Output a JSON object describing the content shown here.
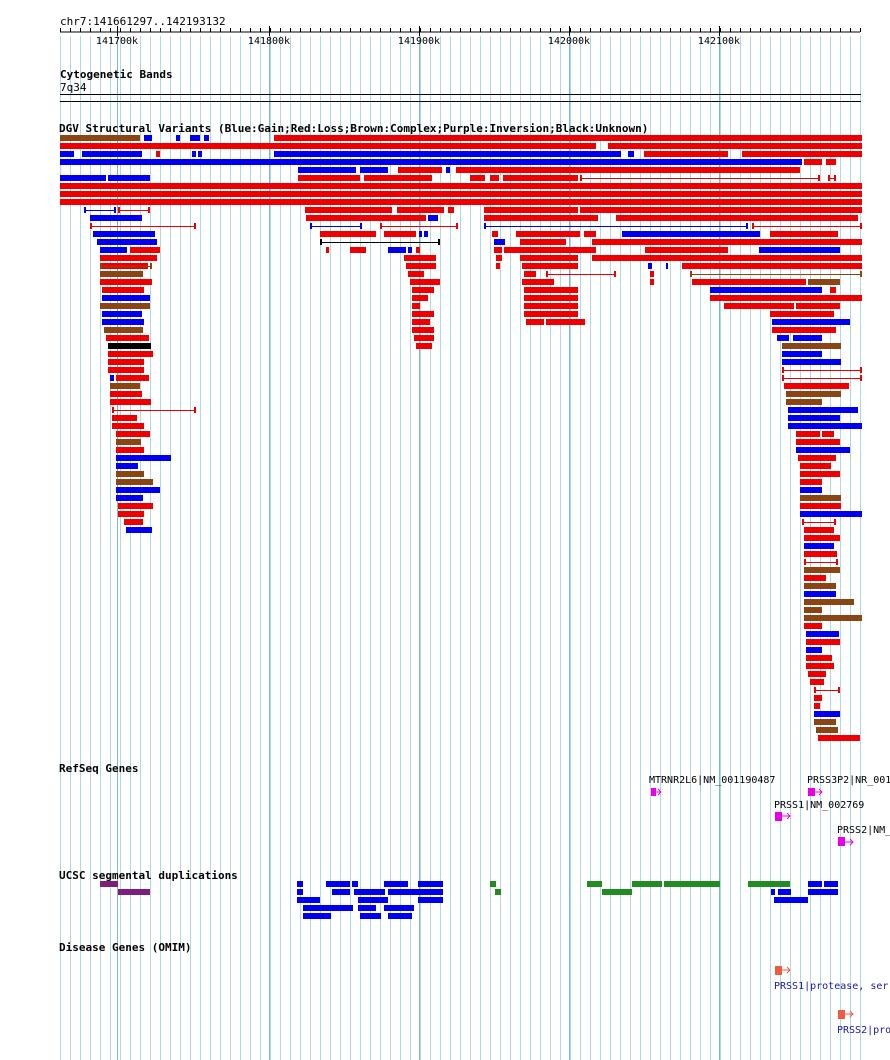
{
  "ruler": {
    "range_label": "chr7:141661297..142193132",
    "start": 141661297,
    "end": 142193132,
    "ticks": [
      "141700k",
      "141800k",
      "141900k",
      "142000k",
      "142100k"
    ]
  },
  "tracks": {
    "cytoband": {
      "title": "Cytogenetic Bands",
      "band": "7q34"
    },
    "dgv": {
      "title": "DGV Structural Variants (Blue:Gain;Red:Loss;Brown:Complex;Purple:Inversion;Black:Unknown)"
    },
    "refseq": {
      "title": "RefSeq Genes",
      "genes": [
        {
          "label": "MTRNR2L6|NM_001190487",
          "start": 142054000,
          "end": 142061000
        },
        {
          "label": "PRSS3P2|NR_001",
          "start": 142152000,
          "end": 142162000
        },
        {
          "label": "PRSS1|NM_002769",
          "start": 142138000,
          "end": 142147000
        },
        {
          "label": "PRSS2|NM_",
          "start": 142172000,
          "end": 142182000
        }
      ]
    },
    "segdup": {
      "title": "UCSC segmental duplications"
    },
    "omim": {
      "title": "Disease Genes (OMIM)",
      "genes": [
        {
          "label": "PRSS1|protease, ser",
          "start": 142138000,
          "end": 142143000
        },
        {
          "label": "PRSS2|pro",
          "start": 142180000,
          "end": 142186000
        }
      ]
    }
  },
  "colors": {
    "gain": "#0000ee",
    "loss": "#ee0000",
    "complex": "#8b4513",
    "inversion": "#7b1f7b",
    "unknown": "#000000",
    "refseq_gene": "#e600e6",
    "segdup_green": "#228b22",
    "segdup_blue": "#0000ee",
    "segdup_purple": "#7b1f7b",
    "omim_gene": "#ee5c42",
    "grid": "#add8e6"
  }
}
